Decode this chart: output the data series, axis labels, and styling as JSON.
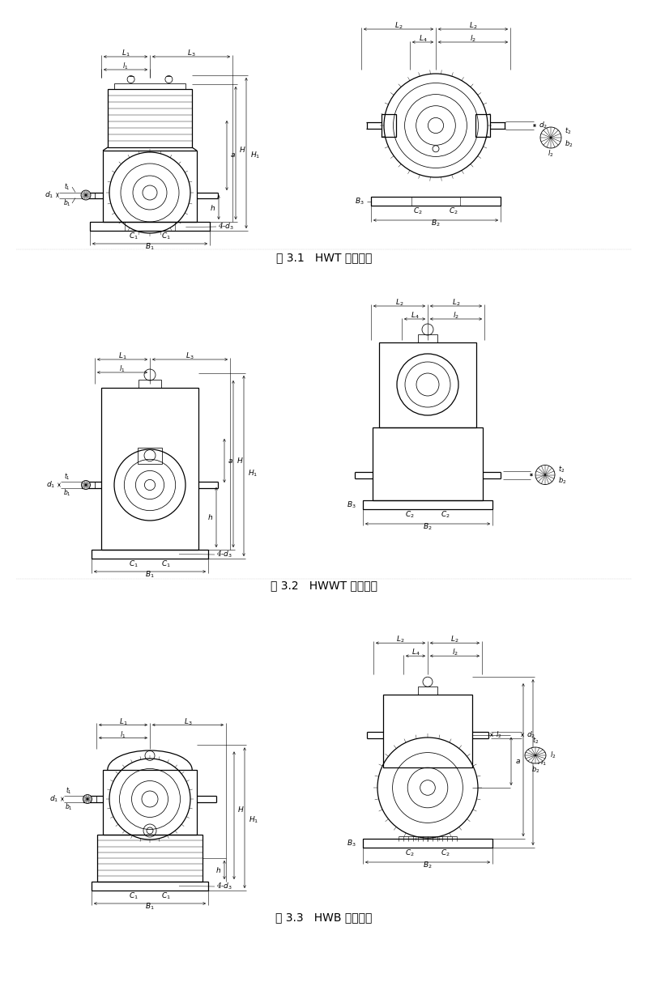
{
  "title1": "图 3.1   HWT 型减速器",
  "title2": "图 3.2   HWWT 型减速器",
  "title3": "图 3.3   HWB 型减速器",
  "bg_color": "#ffffff",
  "line_color": "#000000",
  "fig_width": 8.0,
  "fig_height": 12.13,
  "font_size_title": 10,
  "font_size_label": 6.5
}
